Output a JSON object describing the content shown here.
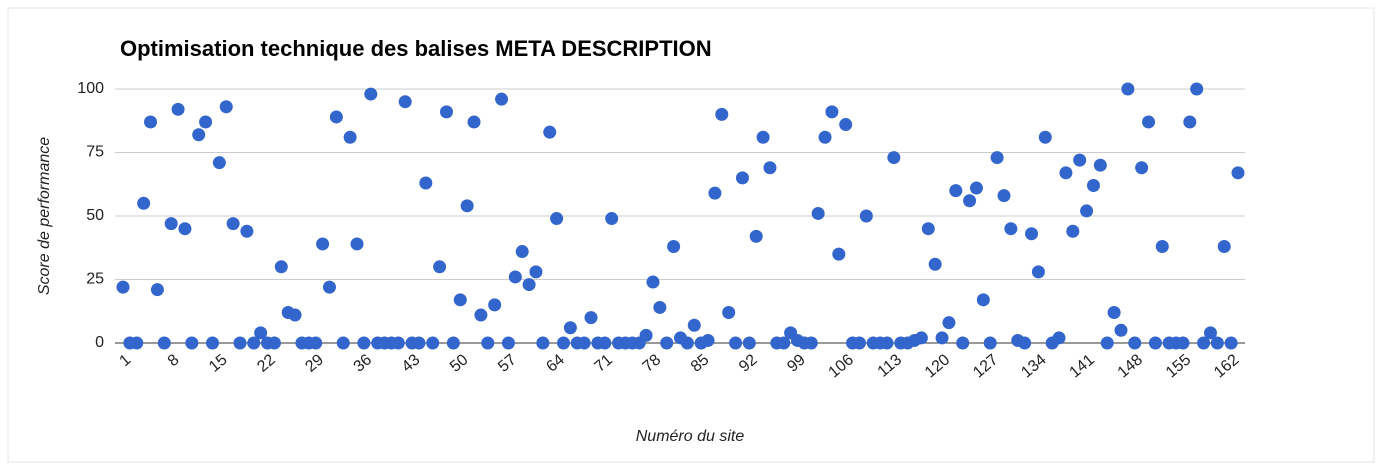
{
  "chart_data": {
    "type": "scatter",
    "title": "Optimisation technique des balises META DESCRIPTION",
    "x_label": "Numéro du site",
    "y_label": "Score de performance",
    "color": "#3366cc",
    "grid": true,
    "x": [
      1,
      2,
      3,
      4,
      5,
      6,
      7,
      8,
      9,
      10,
      11,
      12,
      13,
      14,
      15,
      16,
      17,
      18,
      19,
      20,
      21,
      22,
      23,
      24,
      25,
      26,
      27,
      28,
      29,
      30,
      31,
      32,
      33,
      34,
      35,
      36,
      37,
      38,
      39,
      40,
      41,
      42,
      43,
      44,
      45,
      46,
      47,
      48,
      49,
      50,
      51,
      52,
      53,
      54,
      55,
      56,
      57,
      58,
      59,
      60,
      61,
      62,
      63,
      64,
      65,
      66,
      67,
      68,
      69,
      70,
      71,
      72,
      73,
      74,
      75,
      76,
      77,
      78,
      79,
      80,
      81,
      82,
      83,
      84,
      85,
      86,
      87,
      88,
      89,
      90,
      91,
      92,
      93,
      94,
      95,
      96,
      97,
      98,
      99,
      100,
      101,
      102,
      103,
      104,
      105,
      106,
      107,
      108,
      109,
      110,
      111,
      112,
      113,
      114,
      115,
      116,
      117,
      118,
      119,
      120,
      121,
      122,
      123,
      124,
      125,
      126,
      127,
      128,
      129,
      130,
      131,
      132,
      133,
      134,
      135,
      136,
      137,
      138,
      139,
      140,
      141,
      142,
      143,
      144,
      145,
      146,
      147,
      148,
      149,
      150,
      151,
      152,
      153,
      154,
      155,
      156,
      157,
      158,
      159,
      160,
      161,
      162,
      163
    ],
    "values": [
      22,
      0,
      0,
      55,
      87,
      21,
      0,
      47,
      92,
      45,
      0,
      82,
      87,
      0,
      71,
      93,
      47,
      0,
      44,
      0,
      4,
      0,
      0,
      30,
      12,
      11,
      0,
      0,
      0,
      39,
      22,
      89,
      0,
      81,
      39,
      0,
      98,
      0,
      0,
      0,
      0,
      95,
      0,
      0,
      63,
      0,
      30,
      91,
      0,
      17,
      54,
      87,
      11,
      0,
      15,
      96,
      0,
      26,
      36,
      23,
      28,
      0,
      83,
      49,
      0,
      6,
      0,
      0,
      10,
      0,
      0,
      49,
      0,
      0,
      0,
      0,
      3,
      24,
      14,
      0,
      38,
      2,
      0,
      7,
      0,
      1,
      59,
      90,
      12,
      0,
      65,
      0,
      42,
      81,
      69,
      0,
      0,
      4,
      1,
      0,
      0,
      51,
      81,
      91,
      35,
      86,
      0,
      0,
      50,
      0,
      0,
      0,
      73,
      0,
      0,
      1,
      2,
      45,
      31,
      2,
      8,
      60,
      0,
      56,
      61,
      17,
      0,
      73,
      58,
      45,
      1,
      0,
      43,
      28,
      81,
      0,
      2,
      67,
      44,
      72,
      52,
      62,
      70,
      0,
      12,
      5,
      100,
      0,
      69,
      87,
      0,
      38,
      0,
      0,
      0,
      87,
      100,
      0,
      4,
      0,
      38,
      0,
      67
    ],
    "xlim": [
      1,
      163
    ],
    "xticks": [
      1,
      8,
      15,
      22,
      29,
      36,
      43,
      50,
      57,
      64,
      71,
      78,
      85,
      92,
      99,
      106,
      113,
      120,
      127,
      134,
      141,
      148,
      155,
      162
    ],
    "ylim": [
      0,
      100
    ],
    "yticks": [
      0,
      25,
      50,
      75,
      100
    ]
  }
}
